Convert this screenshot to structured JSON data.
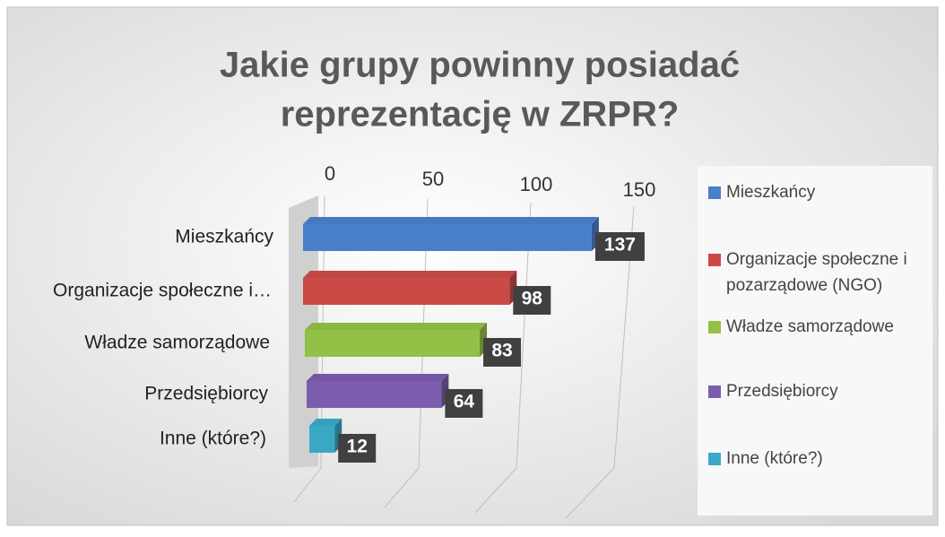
{
  "chart_data": {
    "type": "bar3d",
    "title": [
      "Jakie grupy powinny posiadać",
      "reprezentację w ZRPR?"
    ],
    "categories": [
      "Mieszkańcy",
      "Organizacje społeczne i…",
      "Władze samorządowe",
      "Przedsiębiorcy",
      "Inne (które?)"
    ],
    "legend": [
      "Mieszkańcy",
      [
        "Organizacje społeczne i",
        "pozarządowe (NGO)"
      ],
      "Władze samorządowe",
      "Przedsiębiorcy",
      "Inne (które?)"
    ],
    "values": [
      137,
      98,
      83,
      64,
      12
    ],
    "colors": [
      "#4a7fcc",
      "#cc4a46",
      "#93c046",
      "#7c5cad",
      "#3aa9c6"
    ],
    "xlim": [
      0,
      150
    ],
    "xticks": [
      0,
      50,
      100,
      150
    ],
    "grid": true
  }
}
